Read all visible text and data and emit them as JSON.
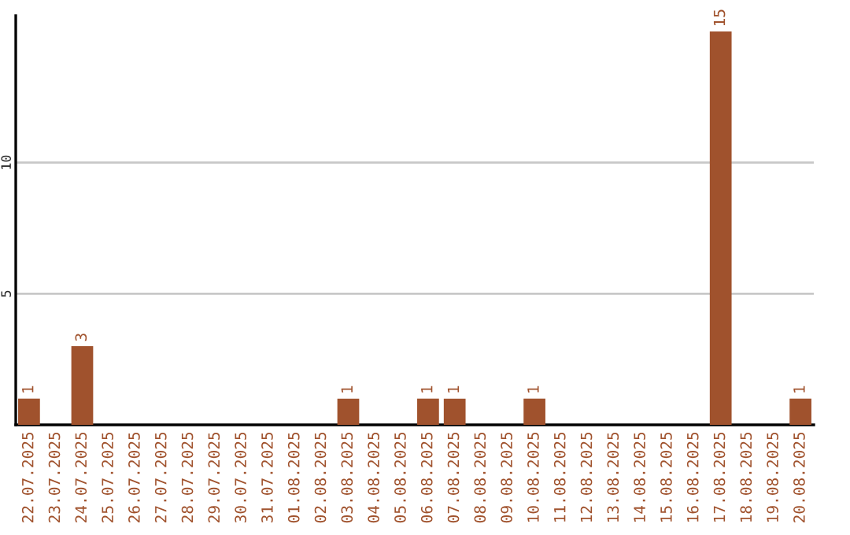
{
  "chart_data": {
    "type": "bar",
    "categories": [
      "22.07.2025",
      "23.07.2025",
      "24.07.2025",
      "25.07.2025",
      "26.07.2025",
      "27.07.2025",
      "28.07.2025",
      "29.07.2025",
      "30.07.2025",
      "31.07.2025",
      "01.08.2025",
      "02.08.2025",
      "03.08.2025",
      "04.08.2025",
      "05.08.2025",
      "06.08.2025",
      "07.08.2025",
      "08.08.2025",
      "09.08.2025",
      "10.08.2025",
      "11.08.2025",
      "12.08.2025",
      "13.08.2025",
      "14.08.2025",
      "15.08.2025",
      "16.08.2025",
      "17.08.2025",
      "18.08.2025",
      "19.08.2025",
      "20.08.2025"
    ],
    "values": [
      1,
      0,
      3,
      0,
      0,
      0,
      0,
      0,
      0,
      0,
      0,
      0,
      1,
      0,
      0,
      1,
      1,
      0,
      0,
      1,
      0,
      0,
      0,
      0,
      0,
      0,
      15,
      0,
      0,
      1
    ],
    "value_labels": [
      "1",
      null,
      "3",
      null,
      null,
      null,
      null,
      null,
      null,
      null,
      null,
      null,
      "1",
      null,
      null,
      "1",
      "1",
      null,
      null,
      "1",
      null,
      null,
      null,
      null,
      null,
      null,
      "15",
      null,
      null,
      "1"
    ],
    "color": "#a0522d",
    "ylim": [
      0,
      15.6
    ],
    "yticks": [
      5,
      10
    ],
    "grid": "y"
  }
}
